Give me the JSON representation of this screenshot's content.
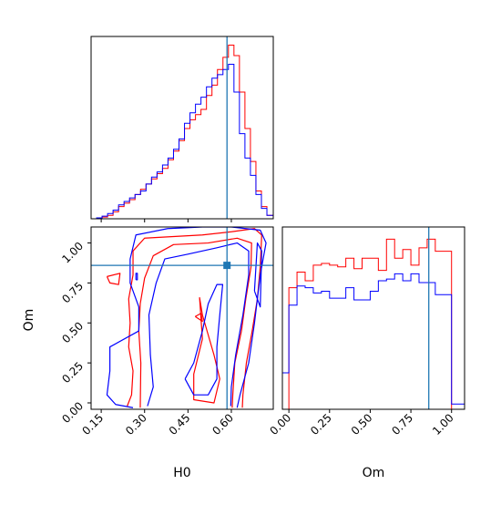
{
  "chart_data": {
    "type": "corner",
    "colors": {
      "series_a": "#ff0000",
      "series_b": "#0000ff",
      "truth": "#1f77b4"
    },
    "truth": {
      "H0": 0.585,
      "Om": 0.86
    },
    "x_param": "H0",
    "y_param": "Om",
    "panels": [
      {
        "id": "hist-h0",
        "type": "step-histogram",
        "param": "H0",
        "xlim": [
          0.115,
          0.745
        ],
        "ylim": [
          0,
          1.05
        ],
        "bin_edges": [
          0.115,
          0.134,
          0.153,
          0.172,
          0.191,
          0.21,
          0.229,
          0.248,
          0.267,
          0.286,
          0.305,
          0.324,
          0.343,
          0.362,
          0.381,
          0.4,
          0.419,
          0.438,
          0.457,
          0.476,
          0.495,
          0.514,
          0.533,
          0.552,
          0.571,
          0.59,
          0.609,
          0.628,
          0.647,
          0.666,
          0.685,
          0.704,
          0.723,
          0.745
        ],
        "series": [
          {
            "name": "",
            "color": "red",
            "values": [
              0,
              0,
              0.01,
              0.02,
              0.04,
              0.07,
              0.09,
              0.11,
              0.14,
              0.17,
              0.2,
              0.23,
              0.26,
              0.29,
              0.34,
              0.39,
              0.45,
              0.52,
              0.57,
              0.6,
              0.63,
              0.71,
              0.77,
              0.86,
              0.93,
              1.0,
              0.94,
              0.73,
              0.52,
              0.33,
              0.16,
              0.07,
              0.02
            ]
          },
          {
            "name": "",
            "color": "blue",
            "values": [
              0,
              0.005,
              0.015,
              0.03,
              0.05,
              0.08,
              0.1,
              0.12,
              0.14,
              0.16,
              0.2,
              0.24,
              0.27,
              0.31,
              0.35,
              0.4,
              0.46,
              0.55,
              0.61,
              0.66,
              0.7,
              0.76,
              0.81,
              0.83,
              0.86,
              0.89,
              0.73,
              0.49,
              0.35,
              0.25,
              0.14,
              0.06,
              0.02
            ]
          }
        ]
      },
      {
        "id": "hist-om",
        "type": "step-histogram",
        "param": "Om",
        "xlim": [
          -0.04,
          1.08
        ],
        "ylim": [
          0,
          1.05
        ],
        "xticks": [
          0.0,
          0.25,
          0.5,
          0.75,
          1.0
        ],
        "xtick_labels": [
          "0.00",
          "0.25",
          "0.50",
          "0.75",
          "1.00"
        ],
        "xlabel": "Om",
        "bin_edges": [
          -0.04,
          0,
          0.05,
          0.1,
          0.15,
          0.2,
          0.25,
          0.3,
          0.35,
          0.4,
          0.45,
          0.5,
          0.55,
          0.6,
          0.65,
          0.7,
          0.75,
          0.8,
          0.85,
          0.9,
          0.95,
          1.0,
          1.04,
          1.08
        ],
        "series": [
          {
            "name": "",
            "color": "red",
            "values": [
              0,
              0.7,
              0.79,
              0.74,
              0.83,
              0.84,
              0.83,
              0.82,
              0.87,
              0.81,
              0.87,
              0.87,
              0.8,
              0.98,
              0.87,
              0.92,
              0.83,
              0.93,
              0.98,
              0.91,
              0.91,
              0,
              0
            ]
          },
          {
            "name": "",
            "color": "blue",
            "values": [
              0.21,
              0.6,
              0.71,
              0.7,
              0.67,
              0.68,
              0.64,
              0.64,
              0.7,
              0.63,
              0.63,
              0.68,
              0.74,
              0.75,
              0.78,
              0.74,
              0.78,
              0.73,
              0.73,
              0.66,
              0.66,
              0.03,
              0.03
            ]
          }
        ]
      },
      {
        "id": "joint",
        "type": "contour",
        "xlim": [
          0.115,
          0.745
        ],
        "ylim": [
          -0.04,
          1.1
        ],
        "xticks": [
          0.15,
          0.3,
          0.45,
          0.6
        ],
        "xtick_labels": [
          "0.15",
          "0.30",
          "0.45",
          "0.60"
        ],
        "yticks": [
          0.0,
          0.25,
          0.5,
          0.75,
          1.0
        ],
        "ytick_labels": [
          "0.00",
          "0.25",
          "0.50",
          "0.75",
          "1.00"
        ],
        "xlabel": "H0",
        "ylabel": "Om",
        "series": [
          {
            "name": "",
            "color": "red",
            "contours": [
              [
                [
                  0.24,
                  -0.02
                ],
                [
                  0.255,
                  0.05
                ],
                [
                  0.26,
                  0.2
                ],
                [
                  0.245,
                  0.35
                ],
                [
                  0.25,
                  0.5
                ],
                [
                  0.245,
                  0.65
                ],
                [
                  0.26,
                  0.8
                ],
                [
                  0.26,
                  0.95
                ],
                [
                  0.3,
                  1.03
                ],
                [
                  0.4,
                  1.04
                ],
                [
                  0.5,
                  1.05
                ],
                [
                  0.6,
                  1.07
                ],
                [
                  0.68,
                  1.09
                ],
                [
                  0.705,
                  1.05
                ],
                [
                  0.7,
                  0.85
                ],
                [
                  0.69,
                  0.65
                ],
                [
                  0.672,
                  0.45
                ],
                [
                  0.652,
                  0.25
                ],
                [
                  0.64,
                  0.05
                ],
                [
                  0.638,
                  -0.03
                ]
              ],
              [
                [
                  0.285,
                  -0.03
                ],
                [
                  0.287,
                  0.25
                ],
                [
                  0.28,
                  0.45
                ],
                [
                  0.285,
                  0.62
                ],
                [
                  0.3,
                  0.78
                ],
                [
                  0.33,
                  0.92
                ],
                [
                  0.4,
                  0.99
                ],
                [
                  0.52,
                  1.0
                ],
                [
                  0.62,
                  1.03
                ],
                [
                  0.67,
                  1.0
                ],
                [
                  0.668,
                  0.85
                ],
                [
                  0.65,
                  0.65
                ],
                [
                  0.635,
                  0.45
                ],
                [
                  0.612,
                  0.25
                ],
                [
                  0.605,
                  0.05
                ],
                [
                  0.603,
                  -0.03
                ]
              ],
              [
                [
                  0.49,
                  0.66
                ],
                [
                  0.5,
                  0.4
                ],
                [
                  0.47,
                  0.18
                ],
                [
                  0.47,
                  0.02
                ],
                [
                  0.54,
                  0.0
                ],
                [
                  0.56,
                  0.15
                ],
                [
                  0.54,
                  0.3
                ],
                [
                  0.5,
                  0.55
                ],
                [
                  0.49,
                  0.66
                ]
              ],
              [
                [
                  0.17,
                  0.79
                ],
                [
                  0.215,
                  0.81
                ],
                [
                  0.21,
                  0.74
                ],
                [
                  0.18,
                  0.75
                ],
                [
                  0.17,
                  0.79
                ]
              ],
              [
                [
                  0.475,
                  0.54
                ],
                [
                  0.5,
                  0.51
                ],
                [
                  0.495,
                  0.56
                ],
                [
                  0.475,
                  0.54
                ]
              ]
            ]
          },
          {
            "name": "",
            "color": "blue",
            "contours": [
              [
                [
                  0.26,
                  -0.03
                ],
                [
                  0.2,
                  -0.01
                ],
                [
                  0.17,
                  0.05
                ],
                [
                  0.18,
                  0.2
                ],
                [
                  0.18,
                  0.35
                ],
                [
                  0.28,
                  0.45
                ],
                [
                  0.28,
                  0.6
                ],
                [
                  0.25,
                  0.75
                ],
                [
                  0.25,
                  0.9
                ],
                [
                  0.27,
                  1.05
                ],
                [
                  0.38,
                  1.09
                ],
                [
                  0.5,
                  1.1
                ],
                [
                  0.6,
                  1.1
                ],
                [
                  0.7,
                  1.08
                ],
                [
                  0.72,
                  1.0
                ],
                [
                  0.7,
                  0.8
                ],
                [
                  0.68,
                  0.5
                ],
                [
                  0.66,
                  0.25
                ],
                [
                  0.63,
                  0.05
                ],
                [
                  0.62,
                  -0.03
                ]
              ],
              [
                [
                  0.31,
                  -0.02
                ],
                [
                  0.33,
                  0.1
                ],
                [
                  0.32,
                  0.3
                ],
                [
                  0.315,
                  0.55
                ],
                [
                  0.34,
                  0.75
                ],
                [
                  0.37,
                  0.9
                ],
                [
                  0.45,
                  0.93
                ],
                [
                  0.55,
                  0.97
                ],
                [
                  0.62,
                  1.0
                ],
                [
                  0.66,
                  0.95
                ],
                [
                  0.66,
                  0.8
                ],
                [
                  0.64,
                  0.55
                ],
                [
                  0.615,
                  0.3
                ],
                [
                  0.6,
                  0.1
                ],
                [
                  0.598,
                  -0.02
                ]
              ],
              [
                [
                  0.44,
                  0.15
                ],
                [
                  0.47,
                  0.25
                ],
                [
                  0.5,
                  0.45
                ],
                [
                  0.52,
                  0.62
                ],
                [
                  0.55,
                  0.74
                ],
                [
                  0.57,
                  0.74
                ],
                [
                  0.56,
                  0.55
                ],
                [
                  0.55,
                  0.35
                ],
                [
                  0.55,
                  0.15
                ],
                [
                  0.52,
                  0.05
                ],
                [
                  0.47,
                  0.05
                ],
                [
                  0.44,
                  0.15
                ]
              ],
              [
                [
                  0.68,
                  0.7
                ],
                [
                  0.7,
                  0.6
                ],
                [
                  0.705,
                  0.95
                ],
                [
                  0.69,
                  1.0
                ],
                [
                  0.68,
                  0.7
                ]
              ],
              [
                [
                  0.27,
                  0.77
                ],
                [
                  0.275,
                  0.77
                ],
                [
                  0.275,
                  0.81
                ],
                [
                  0.27,
                  0.81
                ],
                [
                  0.27,
                  0.77
                ]
              ]
            ]
          }
        ]
      }
    ]
  }
}
